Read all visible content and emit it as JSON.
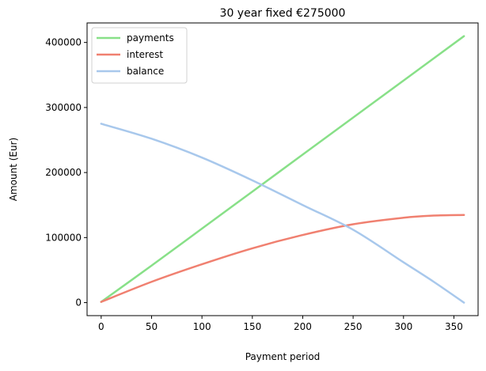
{
  "chart_data": {
    "type": "line",
    "title": "30 year fixed €275000",
    "xlabel": "Payment period",
    "ylabel": "Amount (Eur)",
    "xlim": [
      -14,
      374
    ],
    "ylim": [
      -20000,
      430000
    ],
    "xticks": [
      0,
      50,
      100,
      150,
      200,
      250,
      300,
      350
    ],
    "yticks": [
      0,
      100000,
      200000,
      300000,
      400000
    ],
    "grid": false,
    "legend_position": "top-left",
    "series": [
      {
        "name": "payments",
        "color": "#88e088",
        "x": [
          0,
          50,
          100,
          150,
          200,
          250,
          300,
          360
        ],
        "y": [
          1138,
          56900,
          113800,
          170700,
          227600,
          284500,
          341400,
          409700
        ]
      },
      {
        "name": "interest",
        "color": "#f08070",
        "x": [
          0,
          50,
          100,
          150,
          200,
          250,
          300,
          330,
          360
        ],
        "y": [
          1138,
          32000,
          59000,
          83500,
          104000,
          120500,
          130500,
          133800,
          134700
        ]
      },
      {
        "name": "balance",
        "color": "#a8c8ec",
        "x": [
          0,
          50,
          100,
          150,
          200,
          250,
          300,
          330,
          360
        ],
        "y": [
          275000,
          252000,
          223000,
          188000,
          150000,
          112000,
          62000,
          32000,
          0
        ]
      }
    ]
  }
}
